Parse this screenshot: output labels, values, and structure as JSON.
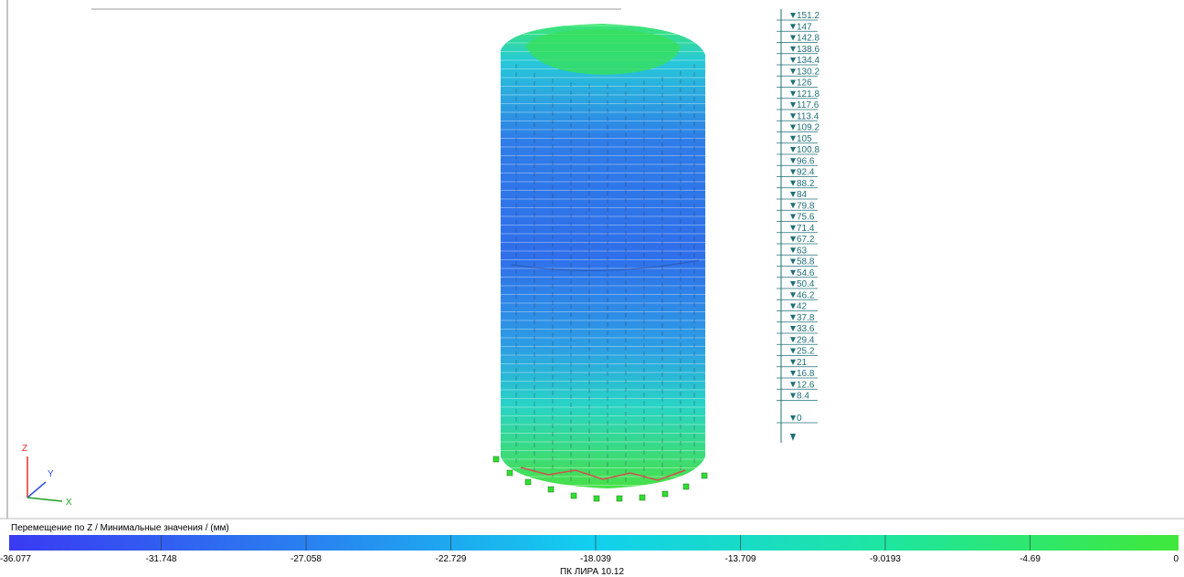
{
  "viewport": {
    "axes": {
      "z": "Z",
      "y": "Y",
      "x": "X"
    },
    "levels": [
      "151.2",
      "147",
      "142.8",
      "138.6",
      "134.4",
      "130.2",
      "126",
      "121.8",
      "117.6",
      "113.4",
      "109.2",
      "105",
      "100.8",
      "96.6",
      "92.4",
      "88.2",
      "84",
      "79.8",
      "75.6",
      "71.4",
      "67.2",
      "63",
      "58.8",
      "54.6",
      "50.4",
      "46.2",
      "42",
      "37.8",
      "33.6",
      "29.4",
      "25.2",
      "21",
      "16.8",
      "12.6",
      "8.4",
      "0"
    ]
  },
  "colorbar": {
    "title": "Перемещение по Z / Минимальные значения / (мм)",
    "labels": [
      "-36.077",
      "-31.748",
      "-27.058",
      "-22.729",
      "-18.039",
      "-13.709",
      "-9.0193",
      "-4.69",
      "0"
    ]
  },
  "footer": "ПК ЛИРА 10.12"
}
